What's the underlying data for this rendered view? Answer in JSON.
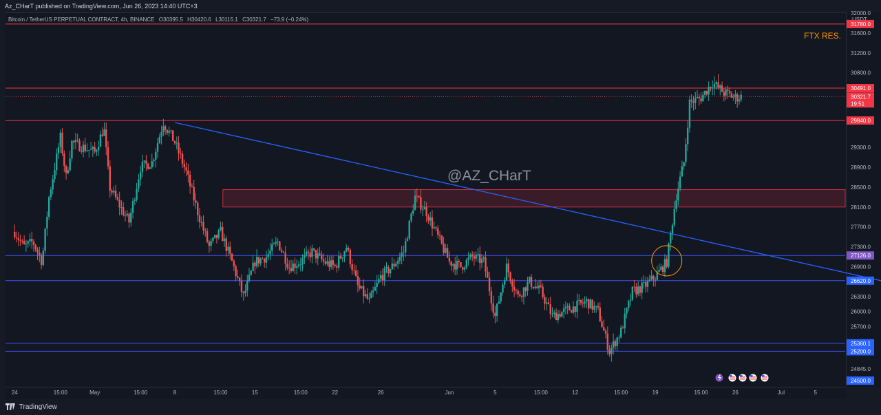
{
  "header": {
    "publisher_line": "Az_CHarT published on TradingView.com, Jun 26, 2023 14:40 UTC+3"
  },
  "symbol": {
    "name": "Bitcoin / TetherUS PERPETUAL CONTRACT, 4h, BINANCE",
    "open": "O30395.5",
    "high": "H30420.6",
    "low": "L30115.1",
    "close": "C30321.7",
    "change": "−73.9 (−0.24%)"
  },
  "watermark": "@AZ_CHarT",
  "annotation": "FTX RES.",
  "footer": {
    "brand": "TradingView",
    "logo_glyph": "17"
  },
  "colors": {
    "background": "#131722",
    "up": "#26a69a",
    "down": "#ef5350",
    "resistance": "#f23645",
    "support": "#3f51f5",
    "trendline": "#2962ff",
    "zone_fill": "#4a1f2b",
    "annotation": "#ff9800",
    "badge_red": "#f23645",
    "badge_purple": "#7e57c2",
    "badge_blue": "#2962ff"
  },
  "icons": [
    "lightning-icon",
    "us-flag-icon",
    "us-flag-icon",
    "us-flag-icon",
    "us-flag-icon"
  ],
  "chart_data": {
    "type": "candlestick",
    "title": "Bitcoin / TetherUS PERPETUAL CONTRACT, 4h, BINANCE",
    "y_unit": "USDT",
    "ylim": [
      24500,
      32000
    ],
    "xlabel": "",
    "ylabel": "",
    "grid": false,
    "y_ticks": [
      "32000.0",
      "31600.0",
      "31200.0",
      "30800.0",
      "29300.0",
      "28900.0",
      "28500.0",
      "28100.0",
      "27700.0",
      "27300.0",
      "26900.0",
      "26300.0",
      "26000.0",
      "25700.0",
      "24845.0"
    ],
    "x_ticks": [
      "24",
      "15:00",
      "May",
      "15:00",
      "8",
      "15:00",
      "15",
      "15:00",
      "22",
      "26",
      "Jun",
      "5",
      "15:00",
      "12",
      "15:00",
      "19",
      "15:00",
      "26",
      "Jul",
      "5"
    ],
    "x_tick_days": [
      0,
      4,
      7,
      11,
      14,
      18,
      21,
      25,
      28,
      32,
      38,
      42,
      46,
      49,
      53,
      56,
      60,
      63,
      67,
      70
    ],
    "key_dates": {
      "chart_start": "2023-04-24",
      "june_first_day": 38,
      "last_candle_day": 63.5
    },
    "levels": [
      {
        "price": 31780.0,
        "label": "31780.0",
        "kind": "resistance",
        "note": "FTX RES."
      },
      {
        "price": 30491.0,
        "label": "30491.0",
        "kind": "resistance"
      },
      {
        "price": 29840.0,
        "label": "29840.0",
        "kind": "resistance"
      },
      {
        "price": 27126.0,
        "label": "27126.0",
        "kind": "support"
      },
      {
        "price": 26620.0,
        "label": "26620.0",
        "kind": "support"
      },
      {
        "price": 25360.1,
        "label": "25360.1",
        "kind": "support"
      },
      {
        "price": 25200.0,
        "label": "25200.0",
        "kind": "support"
      }
    ],
    "current_price": {
      "label": "30321.7",
      "countdown": "19:51",
      "price": 30321.7
    },
    "price_badge_24500": "24500.0",
    "zone": {
      "from": 28100,
      "to": 28450
    },
    "trendline": {
      "start": {
        "day": 14.0,
        "price": 29800
      },
      "end": {
        "day": 80,
        "price": 26400
      }
    },
    "highlight_circle": {
      "day": 57.0,
      "price": 27020
    },
    "path": [
      [
        0,
        27600
      ],
      [
        0.8,
        27300
      ],
      [
        1.6,
        27400
      ],
      [
        2.4,
        27000
      ],
      [
        3.0,
        28300
      ],
      [
        3.5,
        28900
      ],
      [
        4.0,
        29500
      ],
      [
        4.5,
        28700
      ],
      [
        5.0,
        29400
      ],
      [
        6.0,
        29300
      ],
      [
        7.0,
        29200
      ],
      [
        7.8,
        29700
      ],
      [
        8.3,
        28500
      ],
      [
        9.0,
        28200
      ],
      [
        10.0,
        27800
      ],
      [
        11.0,
        28900
      ],
      [
        12.0,
        29000
      ],
      [
        13.0,
        29800
      ],
      [
        14.0,
        29400
      ],
      [
        15.0,
        28800
      ],
      [
        16.0,
        28000
      ],
      [
        17.0,
        27300
      ],
      [
        18.0,
        27600
      ],
      [
        19.0,
        27000
      ],
      [
        20.0,
        26300
      ],
      [
        21.0,
        27000
      ],
      [
        22.0,
        27100
      ],
      [
        23.0,
        27400
      ],
      [
        24.0,
        26900
      ],
      [
        25.0,
        27000
      ],
      [
        26.0,
        27200
      ],
      [
        27.0,
        27000
      ],
      [
        28.0,
        26900
      ],
      [
        29.0,
        27300
      ],
      [
        30.0,
        26500
      ],
      [
        31.0,
        26200
      ],
      [
        32.0,
        26700
      ],
      [
        33.0,
        26900
      ],
      [
        34.0,
        27200
      ],
      [
        35.0,
        28300
      ],
      [
        36.0,
        28000
      ],
      [
        37.0,
        27500
      ],
      [
        38.0,
        27000
      ],
      [
        39.0,
        26900
      ],
      [
        40.0,
        27100
      ],
      [
        41.0,
        27000
      ],
      [
        42.0,
        25900
      ],
      [
        43.0,
        26900
      ],
      [
        44.0,
        26300
      ],
      [
        45.0,
        26600
      ],
      [
        46.0,
        26400
      ],
      [
        47.0,
        25900
      ],
      [
        48.0,
        26000
      ],
      [
        49.0,
        26100
      ],
      [
        50.0,
        26200
      ],
      [
        51.0,
        26000
      ],
      [
        52.0,
        25200
      ],
      [
        53.0,
        25600
      ],
      [
        54.0,
        26400
      ],
      [
        55.0,
        26500
      ],
      [
        56.0,
        26700
      ],
      [
        57.0,
        27000
      ],
      [
        57.8,
        28300
      ],
      [
        58.5,
        29000
      ],
      [
        59.0,
        30200
      ],
      [
        60.0,
        30300
      ],
      [
        61.0,
        30600
      ],
      [
        62.0,
        30400
      ],
      [
        63.0,
        30300
      ],
      [
        63.5,
        30320
      ]
    ]
  }
}
